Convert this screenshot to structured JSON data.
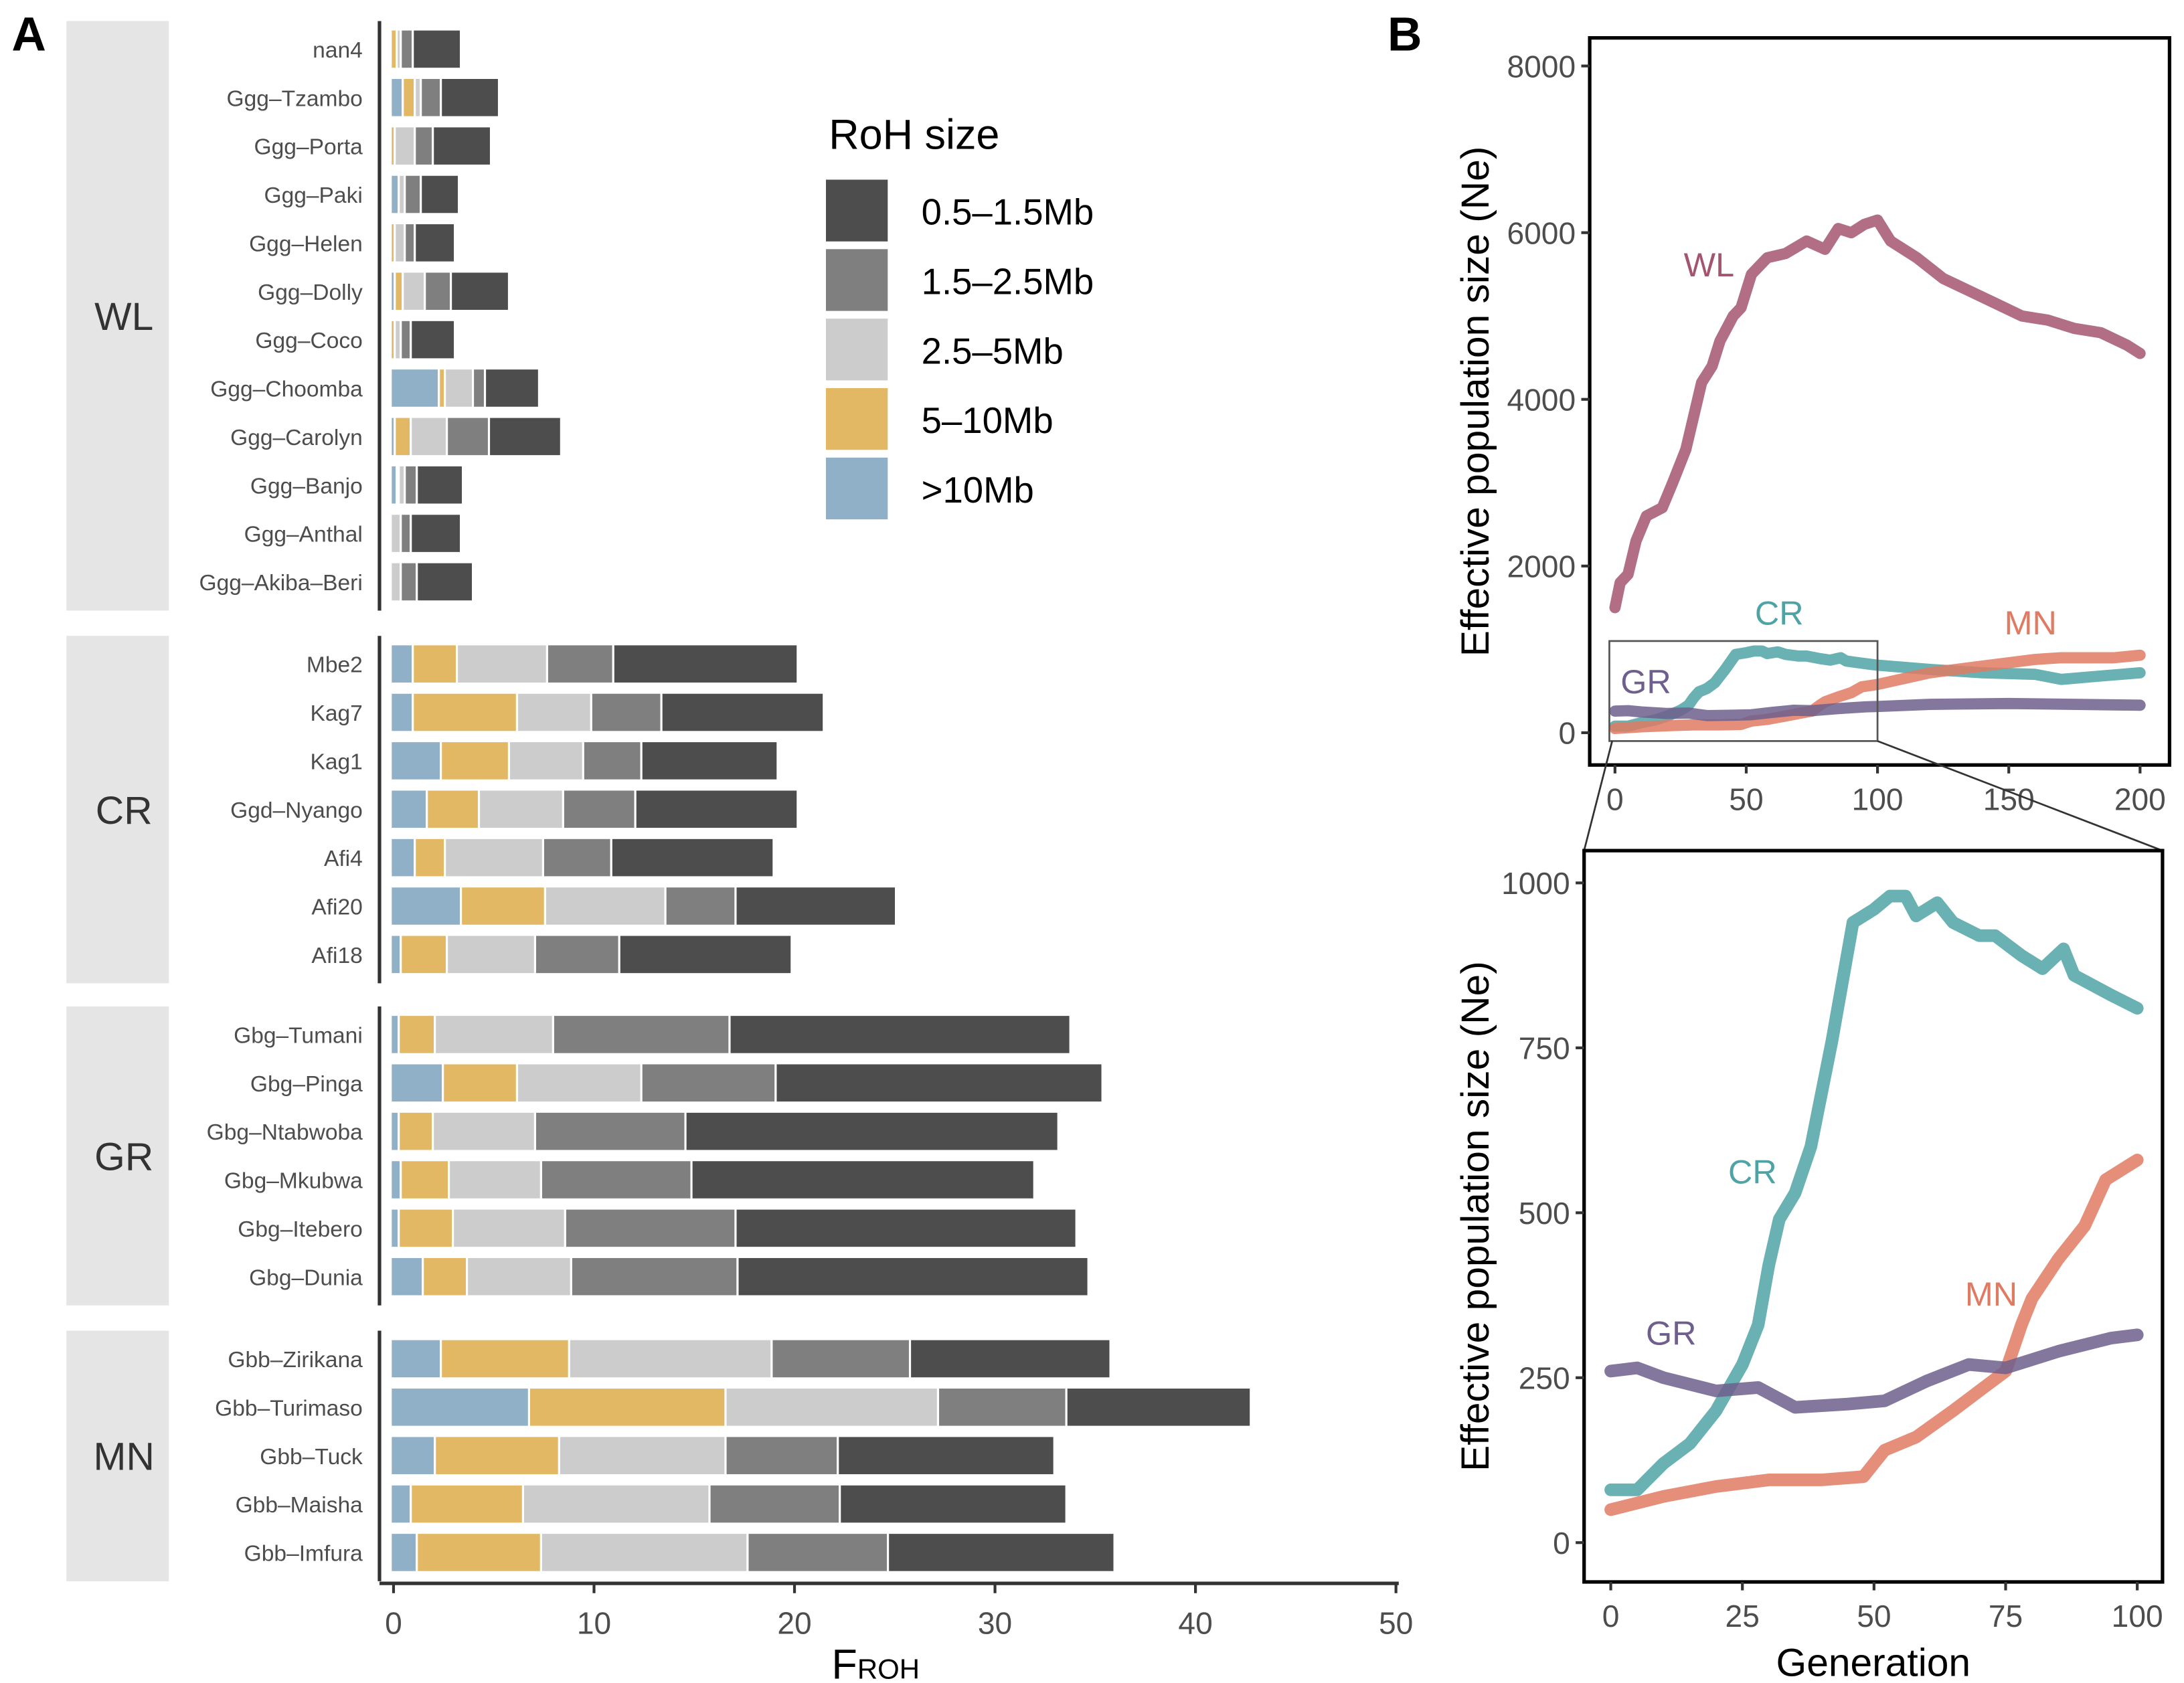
{
  "panels": {
    "a": "A",
    "b": "B"
  },
  "legend": {
    "title": "RoH size",
    "entries": [
      {
        "label": "0.5–1.5Mb",
        "color": "#4d4d4d"
      },
      {
        "label": "1.5–2.5Mb",
        "color": "#7f7f7f"
      },
      {
        "label": "2.5–5Mb",
        "color": "#cccccc"
      },
      {
        "label": "5–10Mb",
        "color": "#e3b865"
      },
      {
        "label": ">10Mb",
        "color": "#8fb0c6"
      }
    ]
  },
  "chart_data": [
    {
      "type": "bar",
      "orientation": "horizontal-stacked",
      "xlabel": "F",
      "xlabel_sub": "ROH",
      "xlim": [
        0,
        50
      ],
      "xticks": [
        "0",
        "10",
        "20",
        "30",
        "40",
        "50"
      ],
      "groups": [
        {
          "label": "WL",
          "samples": [
            "nan4",
            "Ggg–Tzambo",
            "Ggg–Porta",
            "Ggg–Paki",
            "Ggg–Helen",
            "Ggg–Dolly",
            "Ggg–Coco",
            "Ggg–Choomba",
            "Ggg–Carolyn",
            "Ggg–Banjo",
            "Ggg–Anthal",
            "Ggg–Akiba–Beri"
          ],
          "values": {
            ">10Mb": [
              0.0,
              0.6,
              0.0,
              0.4,
              0.0,
              0.2,
              0.0,
              2.4,
              0.2,
              0.3,
              0.0,
              0.0
            ],
            "5–10Mb": [
              0.3,
              0.6,
              0.2,
              0.0,
              0.2,
              0.4,
              0.2,
              0.3,
              0.8,
              0.1,
              0.0,
              0.0
            ],
            "2.5–5Mb": [
              0.2,
              0.3,
              1.0,
              0.3,
              0.5,
              1.1,
              0.3,
              1.4,
              1.8,
              0.3,
              0.5,
              0.5
            ],
            "1.5–2.5Mb": [
              0.6,
              1.0,
              0.9,
              0.8,
              0.5,
              1.3,
              0.5,
              0.6,
              2.1,
              0.6,
              0.5,
              0.8
            ],
            "0.5–1.5Mb": [
              2.4,
              2.9,
              2.9,
              1.9,
              2.0,
              2.9,
              2.2,
              2.7,
              3.6,
              2.3,
              2.5,
              2.8
            ]
          }
        },
        {
          "label": "CR",
          "samples": [
            "Mbe2",
            "Kag7",
            "Kag1",
            "Ggd–Nyango",
            "Afi4",
            "Afi20",
            "Afi18"
          ],
          "values": {
            ">10Mb": [
              1.1,
              1.1,
              2.5,
              1.8,
              1.2,
              3.5,
              0.5
            ],
            "5–10Mb": [
              2.2,
              5.2,
              3.4,
              2.6,
              1.5,
              4.2,
              2.3
            ],
            "2.5–5Mb": [
              4.5,
              3.7,
              3.7,
              4.2,
              4.9,
              6.0,
              4.4
            ],
            "1.5–2.5Mb": [
              3.3,
              3.5,
              2.9,
              3.6,
              3.4,
              3.5,
              4.2
            ],
            "0.5–1.5Mb": [
              9.2,
              8.1,
              6.8,
              8.1,
              8.1,
              8.0,
              8.6
            ]
          }
        },
        {
          "label": "GR",
          "samples": [
            "Gbg–Tumani",
            "Gbg–Pinga",
            "Gbg–Ntabwoba",
            "Gbg–Mkubwa",
            "Gbg–Itebero",
            "Gbg–Dunia"
          ],
          "values": {
            ">10Mb": [
              0.4,
              2.6,
              0.4,
              0.5,
              0.4,
              1.6
            ],
            "5–10Mb": [
              1.8,
              3.7,
              1.7,
              2.4,
              2.7,
              2.2
            ],
            "2.5–5Mb": [
              5.9,
              6.2,
              5.1,
              4.6,
              5.6,
              5.2
            ],
            "1.5–2.5Mb": [
              8.8,
              6.7,
              7.5,
              7.5,
              8.5,
              8.3
            ],
            "0.5–1.5Mb": [
              17.0,
              16.3,
              18.6,
              17.1,
              17.0,
              17.5
            ]
          }
        },
        {
          "label": "MN",
          "samples": [
            "Gbb–Zirikana",
            "Gbb–Turimaso",
            "Gbb–Tuck",
            "Gbb–Maisha",
            "Gbb–Imfura"
          ],
          "values": {
            ">10Mb": [
              2.5,
              6.9,
              2.2,
              1.0,
              1.3
            ],
            "5–10Mb": [
              6.4,
              9.8,
              6.2,
              5.6,
              6.2
            ],
            "2.5–5Mb": [
              10.1,
              10.6,
              8.3,
              9.3,
              10.3
            ],
            "1.5–2.5Mb": [
              6.9,
              6.4,
              5.6,
              6.5,
              7.0
            ],
            "0.5–1.5Mb": [
              10.0,
              9.2,
              10.8,
              11.3,
              11.3
            ]
          }
        }
      ],
      "stack_order": [
        ">10Mb",
        "5–10Mb",
        "2.5–5Mb",
        "1.5–2.5Mb",
        "0.5–1.5Mb"
      ]
    },
    {
      "type": "line",
      "xlabel": "",
      "ylabel": "Effective population size (Ne)",
      "xlim": [
        0,
        200
      ],
      "ylim": [
        0,
        8000
      ],
      "xticks": [
        "0",
        "50",
        "100",
        "150",
        "200"
      ],
      "yticks": [
        "0",
        "2000",
        "4000",
        "6000",
        "8000"
      ],
      "zoom_box": {
        "x": [
          0,
          100
        ],
        "y": [
          -100,
          1100
        ]
      },
      "series": [
        {
          "name": "WL",
          "color": "#a3556e",
          "x": [
            0,
            2,
            5,
            8,
            12,
            18,
            22,
            27,
            30,
            33,
            37,
            40,
            45,
            48,
            52,
            58,
            65,
            73,
            80,
            85,
            90,
            95,
            100,
            105,
            115,
            125,
            135,
            145,
            155,
            165,
            175,
            185,
            195,
            200
          ],
          "y": [
            1500,
            1800,
            1900,
            2300,
            2600,
            2700,
            3000,
            3400,
            3800,
            4200,
            4400,
            4700,
            5000,
            5100,
            5500,
            5700,
            5750,
            5900,
            5800,
            6050,
            6000,
            6100,
            6150,
            5900,
            5700,
            5450,
            5300,
            5150,
            5000,
            4950,
            4850,
            4800,
            4650,
            4550
          ]
        },
        {
          "name": "CR",
          "color": "#4fa3a5",
          "x": [
            0,
            5,
            10,
            15,
            20,
            25,
            28,
            30,
            32,
            35,
            38,
            40,
            42,
            44,
            46,
            50,
            53,
            56,
            58,
            62,
            65,
            70,
            73,
            78,
            82,
            86,
            88,
            95,
            100,
            120,
            140,
            160,
            170,
            185,
            200
          ],
          "y": [
            80,
            80,
            120,
            150,
            200,
            270,
            330,
            420,
            490,
            530,
            600,
            680,
            760,
            850,
            940,
            960,
            980,
            980,
            950,
            970,
            940,
            920,
            920,
            890,
            870,
            900,
            860,
            830,
            810,
            760,
            720,
            700,
            640,
            680,
            720
          ]
        },
        {
          "name": "MN",
          "color": "#e07b63",
          "x": [
            0,
            10,
            20,
            30,
            40,
            48,
            52,
            58,
            65,
            70,
            75,
            78,
            80,
            85,
            90,
            94,
            100,
            120,
            140,
            160,
            170,
            190,
            200
          ],
          "y": [
            50,
            70,
            85,
            95,
            95,
            100,
            140,
            160,
            200,
            230,
            260,
            330,
            370,
            430,
            480,
            550,
            580,
            720,
            800,
            880,
            900,
            900,
            930
          ]
        },
        {
          "name": "GR",
          "color": "#6f5f8c",
          "x": [
            0,
            5,
            10,
            20,
            28,
            35,
            45,
            52,
            60,
            68,
            75,
            85,
            95,
            100,
            120,
            150,
            200
          ],
          "y": [
            260,
            265,
            250,
            230,
            235,
            205,
            210,
            215,
            245,
            270,
            265,
            290,
            310,
            315,
            340,
            350,
            330
          ]
        }
      ]
    },
    {
      "type": "line",
      "xlabel": "Generation",
      "ylabel": "Effective population size (Ne)",
      "xlim": [
        0,
        100
      ],
      "ylim": [
        0,
        1000
      ],
      "xticks": [
        "0",
        "25",
        "50",
        "75",
        "100"
      ],
      "yticks": [
        "0",
        "250",
        "500",
        "750",
        "1000"
      ]
    }
  ]
}
